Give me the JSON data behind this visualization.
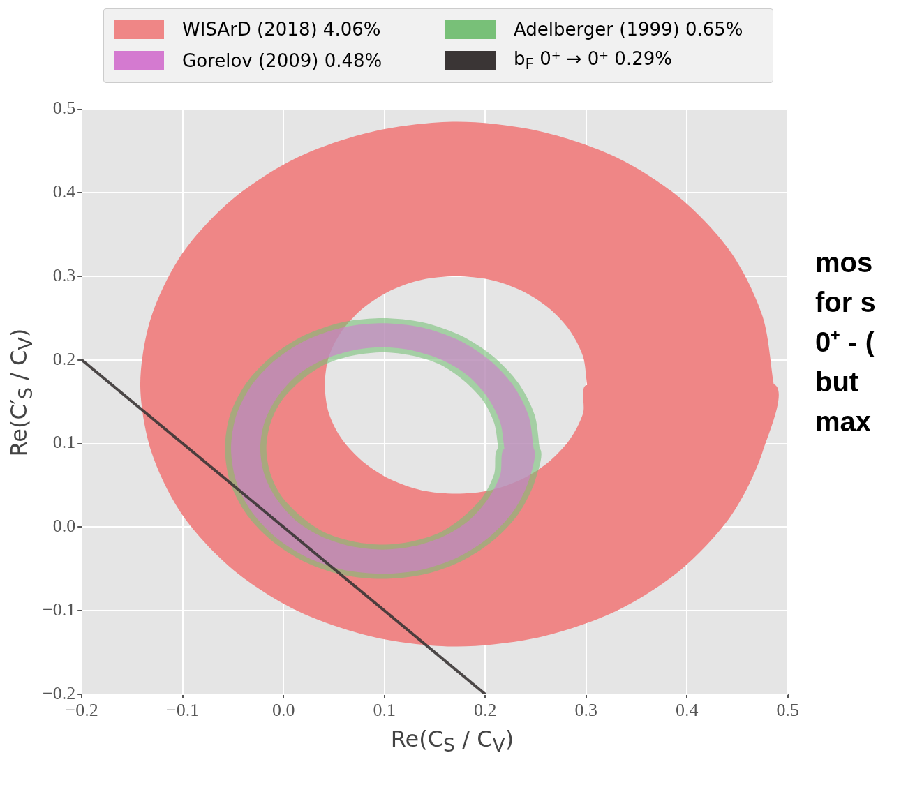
{
  "chart_data": {
    "type": "area",
    "xlabel": "Re(C$_{S}$ / C$_{V}$)",
    "ylabel": "Re(C′$_{S}$ / C$_{V}$)",
    "xlim": [
      -0.2,
      0.5
    ],
    "ylim": [
      -0.2,
      0.5
    ],
    "xticks": [
      {
        "value": -0.2,
        "label": "−0.2"
      },
      {
        "value": -0.1,
        "label": "−0.1"
      },
      {
        "value": 0,
        "label": "0.0"
      },
      {
        "value": 0.1,
        "label": "0.1"
      },
      {
        "value": 0.2,
        "label": "0.2"
      },
      {
        "value": 0.3,
        "label": "0.3"
      },
      {
        "value": 0.4,
        "label": "0.4"
      },
      {
        "value": 0.5,
        "label": "0.5"
      }
    ],
    "yticks": [
      {
        "value": -0.2,
        "label": "−0.2"
      },
      {
        "value": -0.1,
        "label": "−0.1"
      },
      {
        "value": 0,
        "label": "0.0"
      },
      {
        "value": 0.1,
        "label": "0.1"
      },
      {
        "value": 0.2,
        "label": "0.2"
      },
      {
        "value": 0.3,
        "label": "0.3"
      },
      {
        "value": 0.4,
        "label": "0.4"
      },
      {
        "value": 0.5,
        "label": "0.5"
      }
    ],
    "grid": true,
    "legend": "top",
    "annotations": [
      "mos",
      "for s",
      "0⁺ - (",
      "but",
      "max"
    ],
    "series": [
      {
        "name": "WISArD (2018) 4.06%",
        "color": "#ef8686",
        "x": [
          0.486,
          0.475,
          0.444,
          0.394,
          0.329,
          0.253,
          0.172,
          0.091,
          0.015,
          -0.05,
          -0.1,
          -0.131,
          -0.142,
          -0.131,
          -0.1,
          -0.05,
          0.015,
          0.091,
          0.172,
          0.253,
          0.329,
          0.394,
          0.444,
          0.475,
          0.486,
          0.301,
          0.297,
          0.284,
          0.263,
          0.236,
          0.205,
          0.171,
          0.137,
          0.106,
          0.079,
          0.058,
          0.045,
          0.041,
          0.045,
          0.058,
          0.079,
          0.106,
          0.137,
          0.171,
          0.205,
          0.236,
          0.263,
          0.284,
          0.297,
          0.301
        ],
        "values": [
          0.171,
          0.252,
          0.328,
          0.393,
          0.443,
          0.474,
          0.485,
          0.474,
          0.443,
          0.393,
          0.328,
          0.252,
          0.171,
          0.09,
          0.014,
          -0.051,
          -0.101,
          -0.132,
          -0.143,
          -0.132,
          -0.101,
          -0.051,
          0.014,
          0.09,
          0.171,
          0.17,
          0.136,
          0.105,
          0.078,
          0.057,
          0.044,
          0.04,
          0.044,
          0.057,
          0.078,
          0.105,
          0.136,
          0.17,
          0.204,
          0.235,
          0.262,
          0.283,
          0.296,
          0.3,
          0.296,
          0.283,
          0.262,
          0.235,
          0.204,
          0.17
        ]
      },
      {
        "name": "Adelberger (1999) 0.65%",
        "color": "#78c078",
        "x": [
          0.254,
          0.249,
          0.233,
          0.208,
          0.176,
          0.138,
          0.098,
          0.058,
          0.02,
          -0.012,
          -0.037,
          -0.053,
          -0.058,
          -0.053,
          -0.037,
          -0.012,
          0.02,
          0.058,
          0.098,
          0.138,
          0.176,
          0.208,
          0.233,
          0.249,
          0.254,
          0.213,
          0.209,
          0.198,
          0.179,
          0.156,
          0.128,
          0.098,
          0.068,
          0.04,
          0.017,
          -0.002,
          -0.013,
          -0.017,
          -0.013,
          -0.002,
          0.017,
          0.04,
          0.068,
          0.098,
          0.128,
          0.156,
          0.179,
          0.198,
          0.209,
          0.213
        ],
        "values": [
          0.094,
          0.134,
          0.172,
          0.204,
          0.229,
          0.245,
          0.25,
          0.245,
          0.229,
          0.204,
          0.172,
          0.134,
          0.094,
          0.054,
          0.016,
          -0.016,
          -0.041,
          -0.057,
          -0.062,
          -0.057,
          -0.041,
          -0.016,
          0.016,
          0.054,
          0.094,
          0.094,
          0.064,
          0.037,
          0.013,
          -0.006,
          -0.017,
          -0.021,
          -0.017,
          -0.006,
          0.013,
          0.037,
          0.064,
          0.094,
          0.124,
          0.151,
          0.175,
          0.194,
          0.205,
          0.209,
          0.205,
          0.194,
          0.175,
          0.151,
          0.124,
          0.094
        ]
      },
      {
        "name": "Gorelov (2009) 0.48%",
        "color": "#d47ad0",
        "x": [
          0.248,
          0.243,
          0.228,
          0.204,
          0.173,
          0.137,
          0.098,
          0.059,
          0.023,
          -0.008,
          -0.032,
          -0.047,
          -0.052,
          -0.047,
          -0.032,
          -0.008,
          0.023,
          0.059,
          0.098,
          0.137,
          0.173,
          0.204,
          0.228,
          0.243,
          0.248,
          0.219,
          0.215,
          0.203,
          0.184,
          0.159,
          0.129,
          0.098,
          0.067,
          0.037,
          0.012,
          -0.007,
          -0.019,
          -0.023,
          -0.019,
          -0.007,
          0.012,
          0.037,
          0.067,
          0.098,
          0.129,
          0.159,
          0.184,
          0.203,
          0.215,
          0.219
        ],
        "values": [
          0.094,
          0.133,
          0.169,
          0.2,
          0.224,
          0.239,
          0.244,
          0.239,
          0.224,
          0.2,
          0.169,
          0.133,
          0.094,
          0.055,
          0.019,
          -0.012,
          -0.036,
          -0.051,
          -0.056,
          -0.051,
          -0.036,
          -0.012,
          0.019,
          0.055,
          0.094,
          0.094,
          0.063,
          0.034,
          0.008,
          -0.011,
          -0.023,
          -0.027,
          -0.023,
          -0.011,
          0.008,
          0.034,
          0.063,
          0.094,
          0.125,
          0.154,
          0.18,
          0.199,
          0.211,
          0.215,
          0.211,
          0.199,
          0.18,
          0.154,
          0.125,
          0.094
        ]
      },
      {
        "name": "b$_{F}$ 0⁺ → 0⁺ 0.29%",
        "type": "line",
        "color": "#3a3535",
        "x": [
          -0.2,
          0.2
        ],
        "values": [
          0.2,
          -0.2
        ]
      }
    ]
  }
}
